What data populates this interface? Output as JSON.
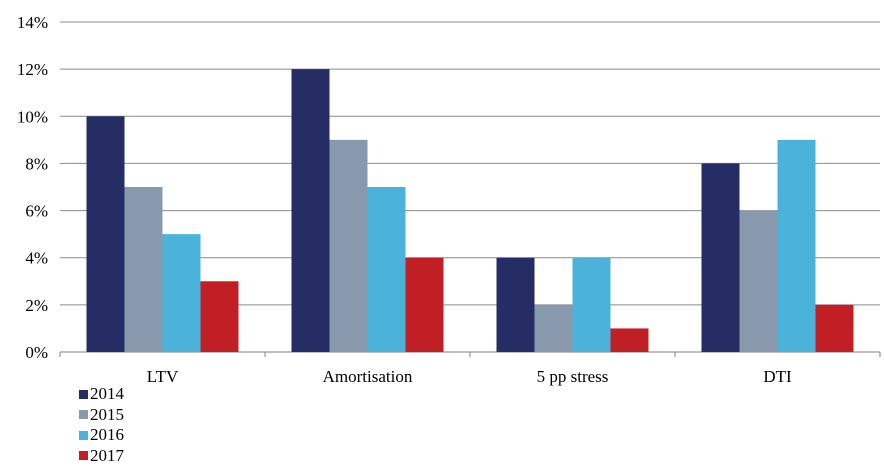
{
  "chart_data": {
    "type": "bar",
    "categories": [
      "LTV",
      "Amortisation",
      "5 pp stress",
      "DTI"
    ],
    "series": [
      {
        "name": "2014",
        "values": [
          10,
          12,
          4,
          8
        ],
        "color": "#262d64"
      },
      {
        "name": "2015",
        "values": [
          7,
          9,
          2,
          6
        ],
        "color": "#8899ae"
      },
      {
        "name": "2016",
        "values": [
          5,
          7,
          4,
          9
        ],
        "color": "#4bb3da"
      },
      {
        "name": "2017",
        "values": [
          3,
          4,
          1,
          2
        ],
        "color": "#c11f25"
      }
    ],
    "yticks": [
      "0%",
      "2%",
      "4%",
      "6%",
      "8%",
      "10%",
      "12%",
      "14%"
    ],
    "ylim": [
      0,
      14
    ],
    "title": "",
    "xlabel": "",
    "ylabel": "",
    "grid": true,
    "legend_position": "bottom-left"
  }
}
